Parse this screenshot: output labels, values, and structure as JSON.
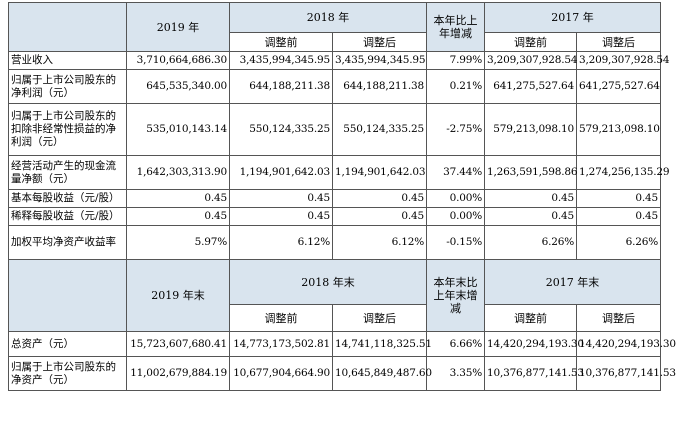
{
  "table1": {
    "header": {
      "y2019": "2019 年",
      "y2018": "2018 年",
      "change": "本年比上年增减",
      "y2017": "2017 年",
      "before": "调整前",
      "after": "调整后"
    },
    "rows": [
      {
        "label": "营业收入",
        "v2019": "3,710,664,686.30",
        "v2018b": "3,435,994,345.95",
        "v2018a": "3,435,994,345.95",
        "chg": "7.99%",
        "v2017b": "3,209,307,928.54",
        "v2017a": "3,209,307,928.54"
      },
      {
        "label": "归属于上市公司股东的净利润（元）",
        "v2019": "645,535,340.00",
        "v2018b": "644,188,211.38",
        "v2018a": "644,188,211.38",
        "chg": "0.21%",
        "v2017b": "641,275,527.64",
        "v2017a": "641,275,527.64"
      },
      {
        "label": "归属于上市公司股东的扣除非经常性损益的净利润（元）",
        "v2019": "535,010,143.14",
        "v2018b": "550,124,335.25",
        "v2018a": "550,124,335.25",
        "chg": "-2.75%",
        "v2017b": "579,213,098.10",
        "v2017a": "579,213,098.10"
      },
      {
        "label": "经营活动产生的现金流量净额（元）",
        "v2019": "1,642,303,313.90",
        "v2018b": "1,194,901,642.03",
        "v2018a": "1,194,901,642.03",
        "chg": "37.44%",
        "v2017b": "1,263,591,598.86",
        "v2017a": "1,274,256,135.29"
      },
      {
        "label": "基本每股收益（元/股）",
        "v2019": "0.45",
        "v2018b": "0.45",
        "v2018a": "0.45",
        "chg": "0.00%",
        "v2017b": "0.45",
        "v2017a": "0.45"
      },
      {
        "label": "稀释每股收益（元/股）",
        "v2019": "0.45",
        "v2018b": "0.45",
        "v2018a": "0.45",
        "chg": "0.00%",
        "v2017b": "0.45",
        "v2017a": "0.45"
      },
      {
        "label": "加权平均净资产收益率",
        "v2019": "5.97%",
        "v2018b": "6.12%",
        "v2018a": "6.12%",
        "chg": "-0.15%",
        "v2017b": "6.26%",
        "v2017a": "6.26%"
      }
    ]
  },
  "table2": {
    "header": {
      "y2019": "2019 年末",
      "y2018": "2018 年末",
      "change": "本年末比上年末增减",
      "y2017": "2017 年末",
      "before": "调整前",
      "after": "调整后"
    },
    "rows": [
      {
        "label": "总资产（元）",
        "v2019": "15,723,607,680.41",
        "v2018b": "14,773,173,502.81",
        "v2018a": "14,741,118,325.51",
        "chg": "6.66%",
        "v2017b": "14,420,294,193.30",
        "v2017a": "14,420,294,193.30"
      },
      {
        "label": "归属于上市公司股东的净资产（元）",
        "v2019": "11,002,679,884.19",
        "v2018b": "10,677,904,664.90",
        "v2018a": "10,645,849,487.60",
        "chg": "3.35%",
        "v2017b": "10,376,877,141.53",
        "v2017a": "10,376,877,141.53"
      }
    ]
  },
  "colors": {
    "header_bg": "#d9e4ee",
    "border": "#555555"
  }
}
